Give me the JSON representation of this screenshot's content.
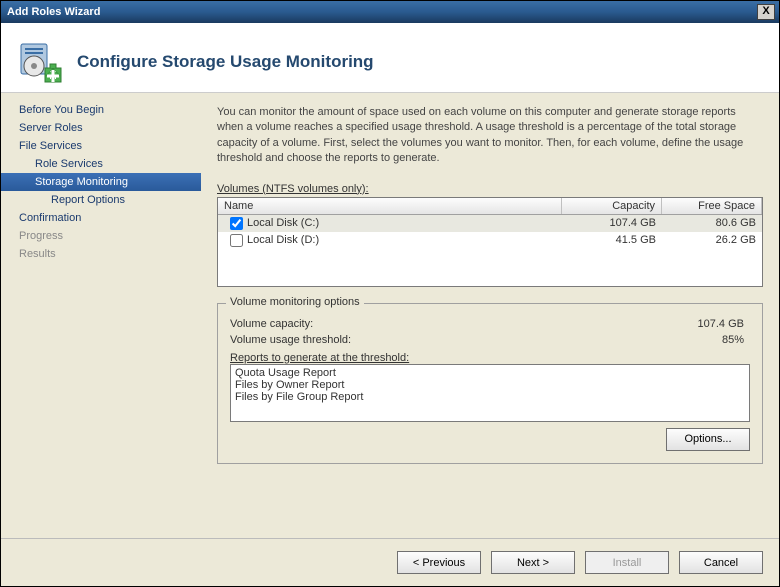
{
  "window": {
    "title": "Add Roles Wizard"
  },
  "header": {
    "title": "Configure Storage Usage Monitoring"
  },
  "sidebar": {
    "items": [
      {
        "label": "Before You Begin",
        "level": 0,
        "selected": false,
        "disabled": false
      },
      {
        "label": "Server Roles",
        "level": 0,
        "selected": false,
        "disabled": false
      },
      {
        "label": "File Services",
        "level": 0,
        "selected": false,
        "disabled": false
      },
      {
        "label": "Role Services",
        "level": 1,
        "selected": false,
        "disabled": false
      },
      {
        "label": "Storage Monitoring",
        "level": 1,
        "selected": true,
        "disabled": false
      },
      {
        "label": "Report Options",
        "level": 2,
        "selected": false,
        "disabled": false
      },
      {
        "label": "Confirmation",
        "level": 0,
        "selected": false,
        "disabled": false
      },
      {
        "label": "Progress",
        "level": 0,
        "selected": false,
        "disabled": true
      },
      {
        "label": "Results",
        "level": 0,
        "selected": false,
        "disabled": true
      }
    ]
  },
  "content": {
    "description": "You can monitor the amount of space used on each volume on this computer and generate storage reports when a volume reaches a specified usage threshold.  A usage threshold is a percentage of the total storage capacity of a volume. First, select the volumes you want to monitor.  Then, for each volume, define the usage threshold and choose the reports to generate.",
    "volumes_label": "Volumes (NTFS volumes only):",
    "columns": {
      "name": "Name",
      "capacity": "Capacity",
      "free": "Free Space"
    },
    "volumes": [
      {
        "checked": true,
        "name": "Local Disk (C:)",
        "capacity": "107.4 GB",
        "free": "80.6 GB",
        "selected": true
      },
      {
        "checked": false,
        "name": "Local Disk (D:)",
        "capacity": "41.5 GB",
        "free": "26.2 GB",
        "selected": false
      }
    ],
    "monitoring": {
      "legend": "Volume monitoring options",
      "capacity_label": "Volume capacity:",
      "capacity_value": "107.4 GB",
      "threshold_label": "Volume usage threshold:",
      "threshold_value": "85%",
      "reports_label": "Reports to generate at the threshold:",
      "reports": [
        "Quota Usage Report",
        "Files by Owner Report",
        "Files by File Group Report"
      ],
      "options_button": "Options..."
    }
  },
  "footer": {
    "previous": "< Previous",
    "next": "Next >",
    "install": "Install",
    "cancel": "Cancel"
  },
  "colors": {
    "titlebar_gradient_top": "#3a6ea5",
    "titlebar_gradient_bottom": "#1a3a5f",
    "panel_bg": "#ece9d8",
    "selected_nav_top": "#3c70b6",
    "selected_nav_bottom": "#2a5a9a",
    "link_color": "#1a3a6e",
    "header_color": "#25496f",
    "border_gray": "#7a7a7a"
  }
}
